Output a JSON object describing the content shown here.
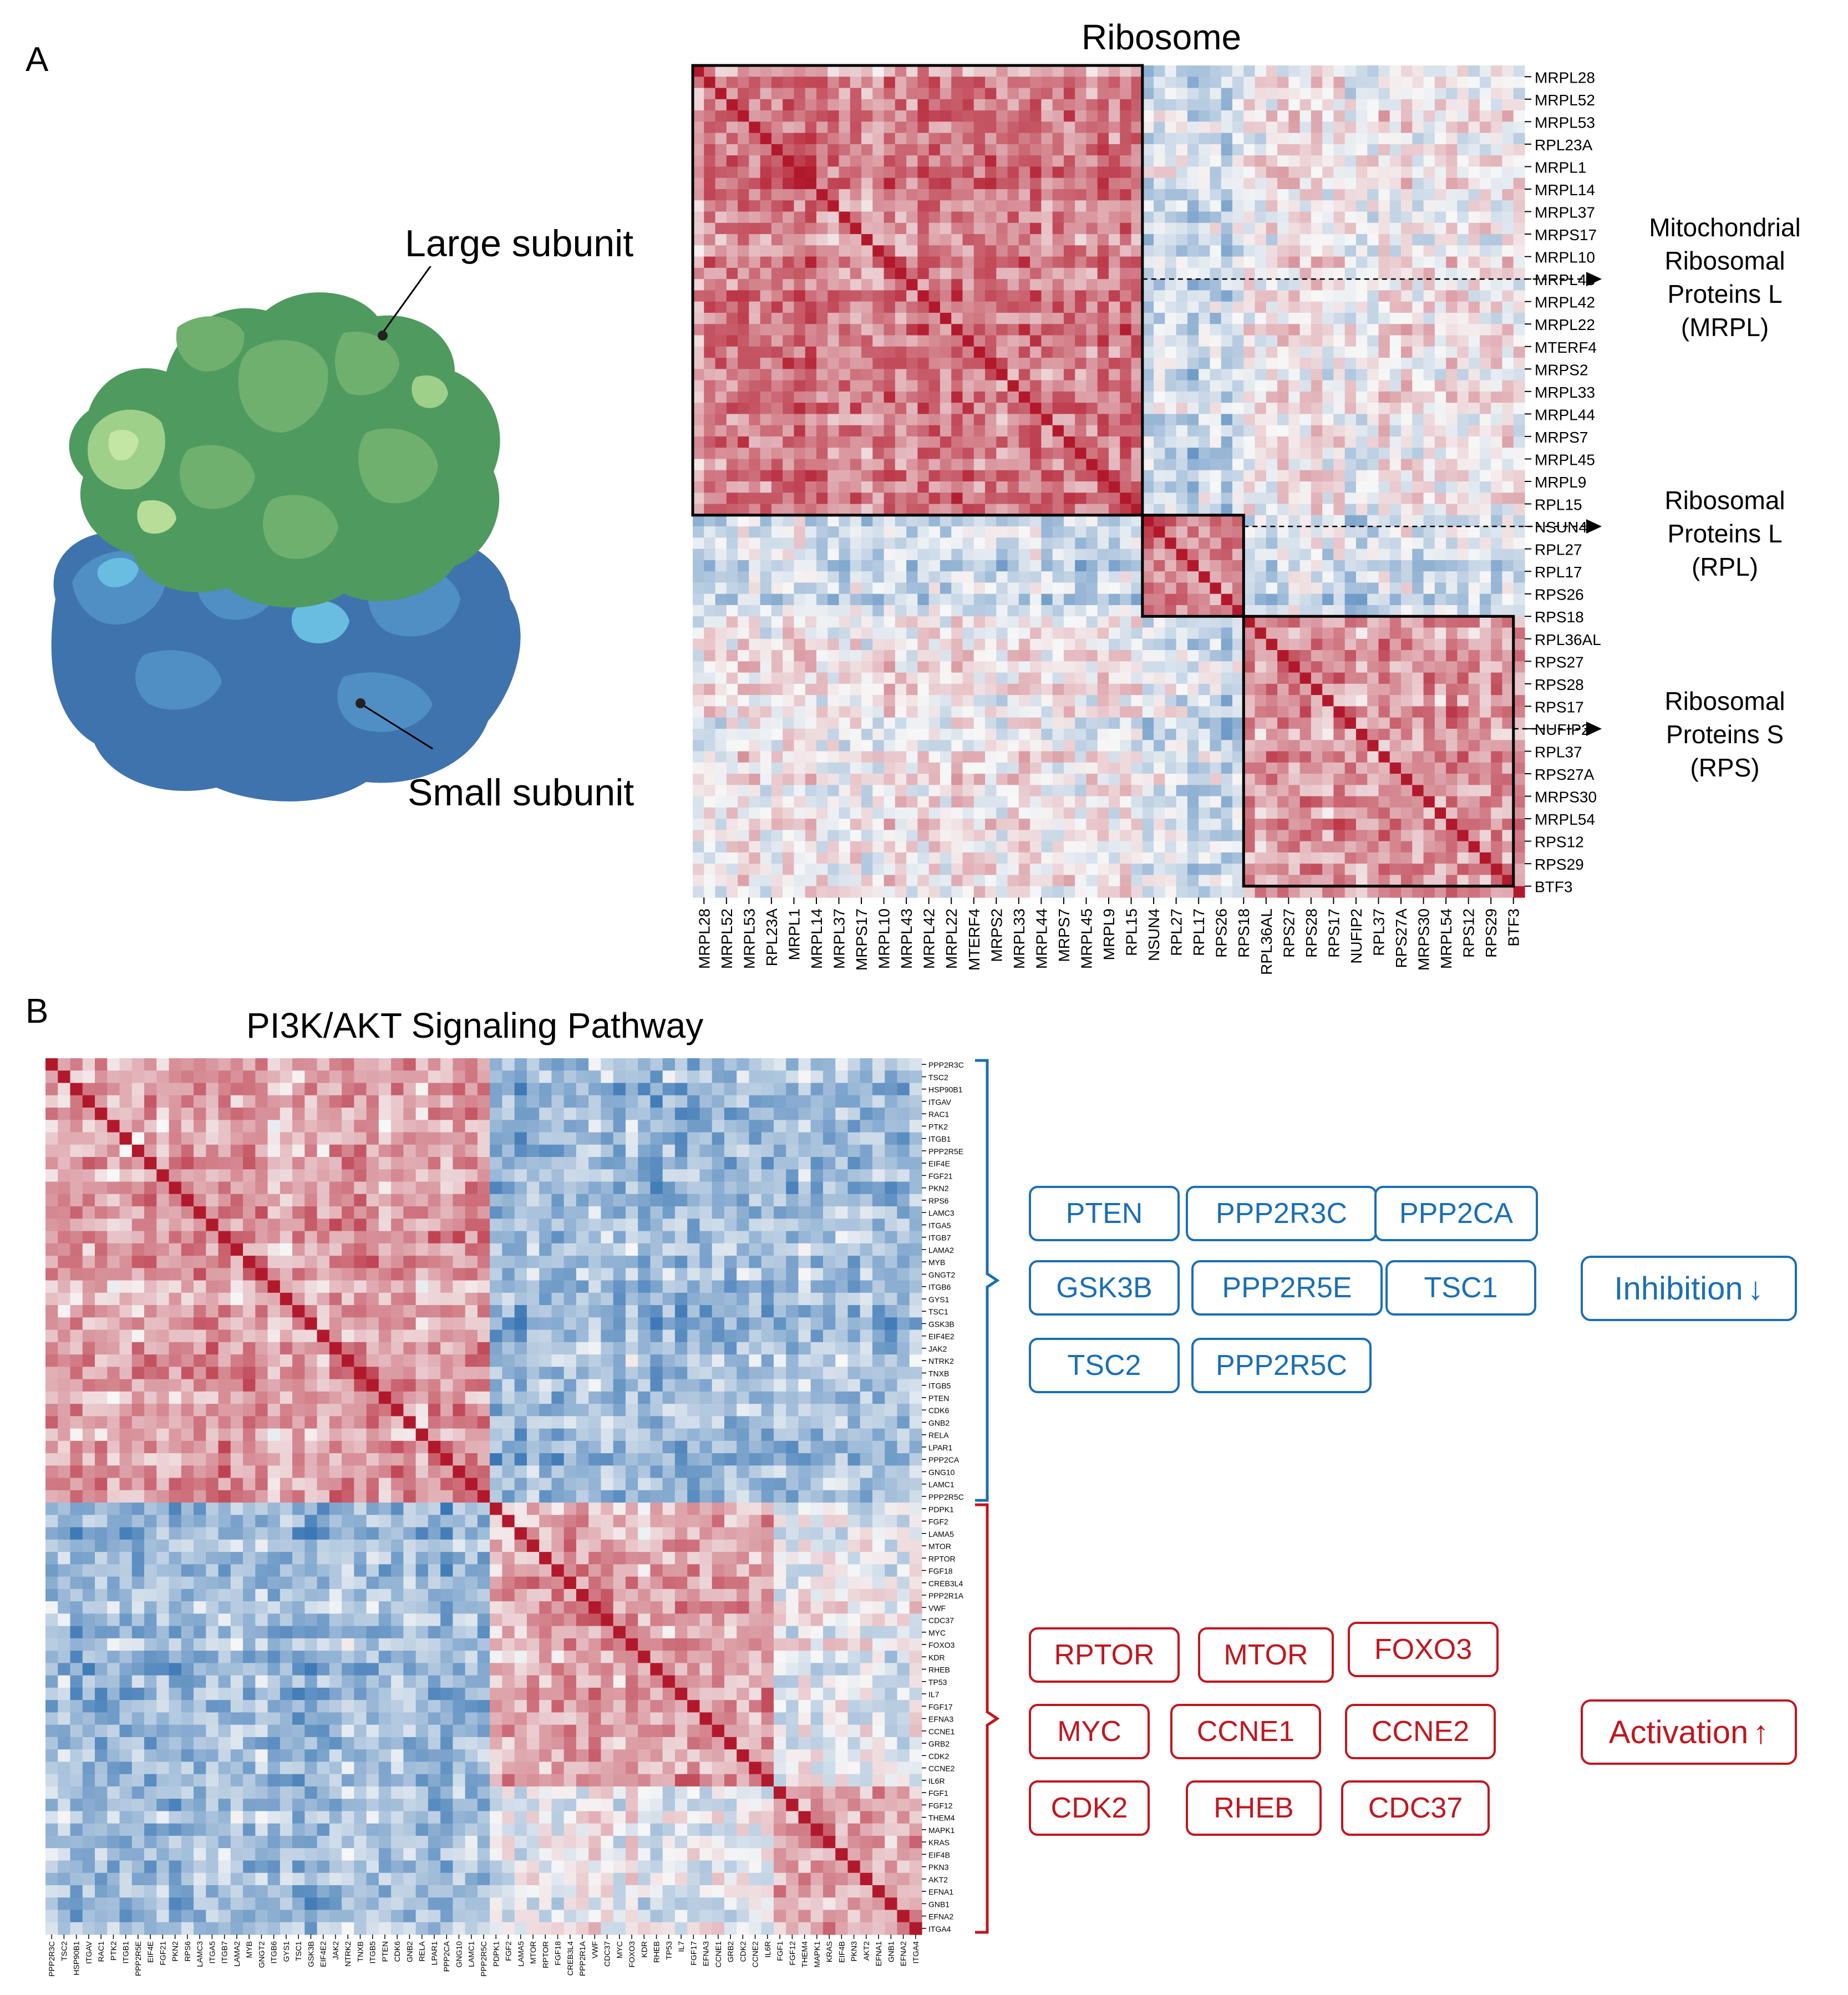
{
  "panel_a": {
    "letter": "A",
    "labels": {
      "large_subunit": "Large subunit",
      "small_subunit": "Small subunit"
    },
    "groups": [
      {
        "name": "mrpl",
        "lines": [
          "Mitochondrial",
          "Ribosomal",
          "Proteins L",
          "(MRPL)"
        ]
      },
      {
        "name": "rpl",
        "lines": [
          "Ribosomal",
          "Proteins L",
          "(RPL)"
        ]
      },
      {
        "name": "rps",
        "lines": [
          "Ribosomal",
          "Proteins S",
          "(RPS)"
        ]
      }
    ],
    "colors": {
      "large_dark": "#4f9a5f",
      "large_mid": "#6fb06f",
      "large_light": "#b8dd98",
      "small_dark": "#3f73ad",
      "small_mid": "#4f8fc4",
      "small_light": "#69bde0"
    }
  },
  "panel_b": {
    "letter": "B",
    "inhibition": {
      "label": "Inhibition",
      "arrow": "↓",
      "genes": [
        "PTEN",
        "PPP2R3C",
        "PPP2CA",
        "GSK3B",
        "PPP2R5E",
        "TSC1",
        "TSC2",
        "PPP2R5C"
      ]
    },
    "activation": {
      "label": "Activation",
      "arrow": "↑",
      "genes": [
        "RPTOR",
        "MTOR",
        "FOXO3",
        "MYC",
        "CCNE1",
        "CCNE2",
        "CDK2",
        "RHEB",
        "CDC37"
      ]
    },
    "colors": {
      "inhibition": "#1b6fb5",
      "activation": "#c0171f"
    }
  },
  "chart_data": [
    {
      "type": "heatmap",
      "title": "Ribosome",
      "row_labels": [
        "MRPL28",
        "MRPL52",
        "MRPL53",
        "RPL23A",
        "MRPL1",
        "MRPL14",
        "MRPL37",
        "MRPS17",
        "MRPL10",
        "MRPL43",
        "MRPL42",
        "MRPL22",
        "MTERF4",
        "MRPS2",
        "MRPL33",
        "MRPL44",
        "MRPS7",
        "MRPL45",
        "MRPL9",
        "RPL15",
        "NSUN4",
        "RPL27",
        "RPL17",
        "RPS26",
        "RPS18",
        "RPL36AL",
        "RPS27",
        "RPS28",
        "RPS17",
        "NUFIP2",
        "RPL37",
        "RPS27A",
        "MRPS30",
        "MRPL54",
        "RPS12",
        "RPS29",
        "BTF3"
      ],
      "col_labels": [
        "MRPL28",
        "MRPL52",
        "MRPL53",
        "RPL23A",
        "MRPL1",
        "MRPL14",
        "MRPL37",
        "MRPS17",
        "MRPL10",
        "MRPL43",
        "MRPL42",
        "MRPL22",
        "MTERF4",
        "MRPS2",
        "MRPL33",
        "MRPL44",
        "MRPS7",
        "MRPL45",
        "MRPL9",
        "RPL15",
        "NSUN4",
        "RPL27",
        "RPL17",
        "RPS26",
        "RPS18",
        "RPL36AL",
        "RPS27",
        "RPS28",
        "RPS17",
        "NUFIP2",
        "RPL37",
        "RPS27A",
        "MRPS30",
        "MRPL54",
        "RPS12",
        "RPS29",
        "BTF3"
      ],
      "n_cells": 74,
      "clusters": [
        {
          "name": "MRPL",
          "start": 0,
          "end": 40,
          "marker_label": "MRPL43"
        },
        {
          "name": "RPL",
          "start": 40,
          "end": 49,
          "marker_label": "NSUN4"
        },
        {
          "name": "RPS",
          "start": 49,
          "end": 73,
          "marker_label": "NUFIP2"
        }
      ],
      "value_range": [
        -1,
        1
      ],
      "colormap": {
        "negative": "#2166ac",
        "zero": "#f7f7f7",
        "positive": "#b2182b"
      },
      "diagonal_value": 1
    },
    {
      "type": "heatmap",
      "title": "PI3K/AKT Signaling Pathway",
      "row_labels": [
        "PPP2R3C",
        "TSC2",
        "HSP90B1",
        "ITGAV",
        "RAC1",
        "PTK2",
        "ITGB1",
        "PPP2R5E",
        "EIF4E",
        "FGF21",
        "PKN2",
        "RPS6",
        "LAMC3",
        "ITGA5",
        "ITGB7",
        "LAMA2",
        "MYB",
        "GNGT2",
        "ITGB6",
        "GYS1",
        "TSC1",
        "GSK3B",
        "EIF4E2",
        "JAK2",
        "NTRK2",
        "TNXB",
        "ITGB5",
        "PTEN",
        "CDK6",
        "GNB2",
        "RELA",
        "LPAR1",
        "PPP2CA",
        "GNG10",
        "LAMC1",
        "PPP2R5C",
        "PDPK1",
        "FGF2",
        "LAMA5",
        "MTOR",
        "RPTOR",
        "FGF18",
        "CREB3L4",
        "PPP2R1A",
        "VWF",
        "CDC37",
        "MYC",
        "FOXO3",
        "KDR",
        "RHEB",
        "TP53",
        "IL7",
        "FGF17",
        "EFNA3",
        "CCNE1",
        "GRB2",
        "CDK2",
        "CCNE2",
        "IL6R",
        "FGF1",
        "FGF12",
        "THEM4",
        "MAPK1",
        "KRAS",
        "EIF4B",
        "PKN3",
        "AKT2",
        "EFNA1",
        "GNB1",
        "EFNA2",
        "ITGA4"
      ],
      "col_labels": [
        "PPP2R3C",
        "TSC2",
        "HSP90B1",
        "ITGAV",
        "RAC1",
        "PTK2",
        "ITGB1",
        "PPP2R5E",
        "EIF4E",
        "FGF21",
        "PKN2",
        "RPS6",
        "LAMC3",
        "ITGA5",
        "ITGB7",
        "LAMA2",
        "MYB",
        "GNGT2",
        "ITGB6",
        "GYS1",
        "TSC1",
        "GSK3B",
        "EIF4E2",
        "JAK2",
        "NTRK2",
        "TNXB",
        "ITGB5",
        "PTEN",
        "CDK6",
        "GNB2",
        "RELA",
        "LPAR1",
        "PPP2CA",
        "GNG10",
        "LAMC1",
        "PPP2R5C",
        "PDPK1",
        "FGF2",
        "LAMA5",
        "MTOR",
        "RPTOR",
        "FGF18",
        "CREB3L4",
        "PPP2R1A",
        "VWF",
        "CDC37",
        "MYC",
        "FOXO3",
        "KDR",
        "RHEB",
        "TP53",
        "IL7",
        "FGF17",
        "EFNA3",
        "CCNE1",
        "GRB2",
        "CDK2",
        "CCNE2",
        "IL6R",
        "FGF1",
        "FGF12",
        "THEM4",
        "MAPK1",
        "KRAS",
        "EIF4B",
        "PKN3",
        "AKT2",
        "EFNA1",
        "GNB1",
        "EFNA2",
        "ITGA4"
      ],
      "clusters": [
        {
          "name": "Inhibition",
          "start": 0,
          "end": 36
        },
        {
          "name": "Activation",
          "start": 36,
          "end": 71
        }
      ],
      "value_range": [
        -1,
        1
      ],
      "colormap": {
        "negative": "#2166ac",
        "zero": "#f7f7f7",
        "positive": "#b2182b"
      },
      "diagonal_value": 1
    }
  ]
}
